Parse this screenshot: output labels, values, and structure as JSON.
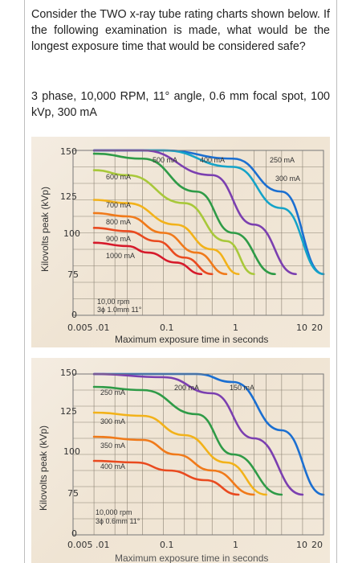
{
  "question": {
    "text": "Consider the TWO x-ray tube rating charts shown below. If the following examination is made, what would be the longest exposure time that would be considered safe?",
    "parameters": "3 phase, 10,000 RPM, 11° angle, 0.6 mm focal spot, 100 kVp, 300 mA"
  },
  "chart_top": {
    "ylabel": "Kilovolts peak (kVp)",
    "xlabel": "Maximum exposure time in seconds",
    "y_ticks": [
      "150",
      "125",
      "100",
      "75",
      "0"
    ],
    "x_ticks": [
      "0.005",
      ".01",
      "0.1",
      "1",
      "10",
      "20"
    ],
    "curve_labels": [
      "500 mA",
      "400 mA",
      "250 mA",
      "300 mA",
      "600 mA",
      "700 mA",
      "800 mA",
      "900 mA",
      "1000 mA"
    ],
    "annotation_line1": "10,00 rpm",
    "annotation_line2": "3ɸ 1.0mm 11°"
  },
  "chart_bottom": {
    "ylabel": "Kilovolts peak (kVp)",
    "xlabel": "Maximum exposure time in seconds",
    "y_ticks": [
      "150",
      "125",
      "100",
      "75",
      "0"
    ],
    "x_ticks": [
      "0.005",
      ".01",
      "0.1",
      "1",
      "10",
      "20"
    ],
    "curve_labels": [
      "250 mA",
      "200 mA",
      "150 mA",
      "300 mA",
      "350 mA",
      "400 mA"
    ],
    "annotation_line1": "10,000 rpm",
    "annotation_line2": "3ɸ 0.6mm 11°"
  },
  "chart_data": [
    {
      "type": "line",
      "title": "",
      "xlabel": "Maximum exposure time in seconds",
      "ylabel": "Kilovolts peak (kVp)",
      "x_scale": "log",
      "xlim": [
        0.005,
        20
      ],
      "ylim": [
        50,
        150
      ],
      "series": [
        {
          "name": "250 mA",
          "color": "#1b6fd1",
          "x": [
            0.01,
            0.1,
            1,
            5,
            20
          ],
          "y": [
            150,
            150,
            145,
            125,
            75
          ]
        },
        {
          "name": "300 mA",
          "color": "#14a3c8",
          "x": [
            0.01,
            0.1,
            1,
            5,
            20
          ],
          "y": [
            150,
            150,
            140,
            115,
            75
          ]
        },
        {
          "name": "400 mA",
          "color": "#7b3fb0",
          "x": [
            0.01,
            0.05,
            0.5,
            2,
            8
          ],
          "y": [
            150,
            150,
            135,
            105,
            75
          ]
        },
        {
          "name": "500 mA",
          "color": "#2f9b47",
          "x": [
            0.01,
            0.05,
            0.3,
            1,
            4
          ],
          "y": [
            148,
            145,
            125,
            100,
            75
          ]
        },
        {
          "name": "600 mA",
          "color": "#a8c83a",
          "x": [
            0.01,
            0.03,
            0.2,
            0.8,
            2
          ],
          "y": [
            138,
            135,
            118,
            95,
            75
          ]
        },
        {
          "name": "700 mA",
          "color": "#f2b21a",
          "x": [
            0.01,
            0.03,
            0.15,
            0.5,
            1.2
          ],
          "y": [
            120,
            118,
            105,
            90,
            75
          ]
        },
        {
          "name": "800 mA",
          "color": "#f07a1a",
          "x": [
            0.01,
            0.03,
            0.1,
            0.3,
            0.8
          ],
          "y": [
            112,
            110,
            100,
            88,
            75
          ]
        },
        {
          "name": "900 mA",
          "color": "#e94a1f",
          "x": [
            0.01,
            0.03,
            0.08,
            0.2,
            0.5
          ],
          "y": [
            103,
            101,
            95,
            85,
            75
          ]
        },
        {
          "name": "1000 mA",
          "color": "#d61a2b",
          "x": [
            0.01,
            0.03,
            0.06,
            0.15,
            0.35
          ],
          "y": [
            94,
            92,
            88,
            82,
            75
          ]
        }
      ]
    },
    {
      "type": "line",
      "title": "",
      "xlabel": "Maximum exposure time in seconds",
      "ylabel": "Kilovolts peak (kVp)",
      "x_scale": "log",
      "xlim": [
        0.005,
        20
      ],
      "ylim": [
        50,
        150
      ],
      "series": [
        {
          "name": "150 mA",
          "color": "#1b6fd1",
          "x": [
            0.01,
            0.3,
            1,
            5,
            20
          ],
          "y": [
            150,
            150,
            145,
            115,
            75
          ]
        },
        {
          "name": "200 mA",
          "color": "#7b3fb0",
          "x": [
            0.01,
            0.1,
            0.5,
            2,
            10
          ],
          "y": [
            150,
            148,
            138,
            110,
            75
          ]
        },
        {
          "name": "250 mA",
          "color": "#2f9b47",
          "x": [
            0.01,
            0.05,
            0.3,
            1,
            5
          ],
          "y": [
            142,
            140,
            125,
            100,
            75
          ]
        },
        {
          "name": "300 mA",
          "color": "#f2b21a",
          "x": [
            0.01,
            0.05,
            0.2,
            0.8,
            3
          ],
          "y": [
            126,
            124,
            112,
            95,
            75
          ]
        },
        {
          "name": "350 mA",
          "color": "#f07a1a",
          "x": [
            0.01,
            0.05,
            0.15,
            0.5,
            2
          ],
          "y": [
            111,
            109,
            100,
            90,
            75
          ]
        },
        {
          "name": "400 mA",
          "color": "#e94a1f",
          "x": [
            0.01,
            0.04,
            0.12,
            0.4,
            1.2
          ],
          "y": [
            96,
            95,
            90,
            84,
            75
          ]
        }
      ]
    }
  ]
}
